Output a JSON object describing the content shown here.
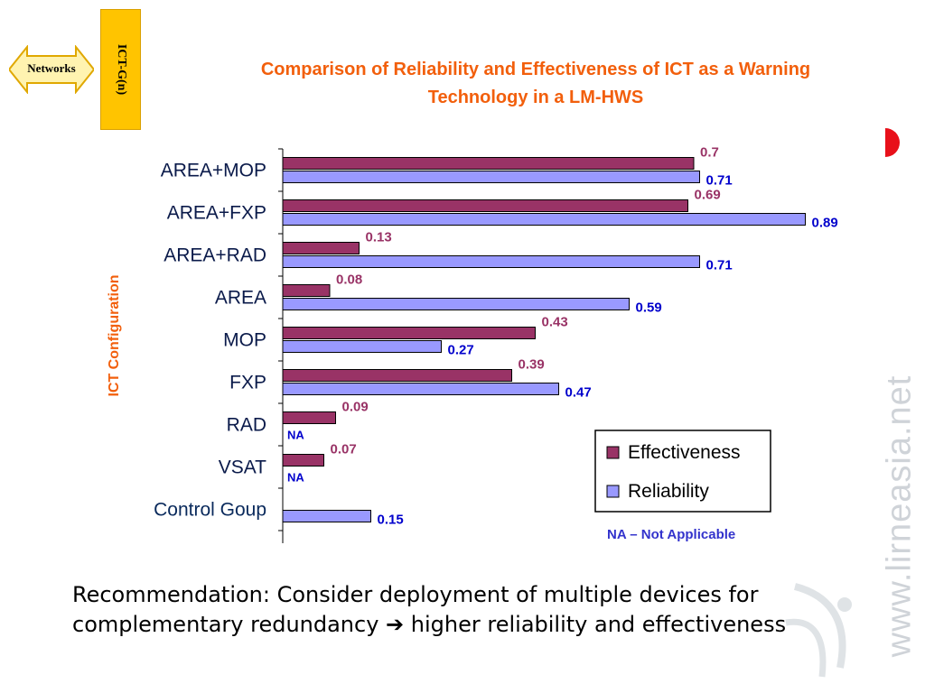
{
  "nav": {
    "label": "Networks",
    "tab_label": "ICT-G(n)"
  },
  "watermark": "www.lirneasia.net",
  "recommendation": {
    "text_before": "Recommendation: Consider deployment of multiple devices for complementary redundancy ",
    "arrow": "➔",
    "text_after": " higher reliability and effectiveness"
  },
  "colors": {
    "effectiveness": "#993366",
    "reliability": "#9999ff",
    "title": "#f25f0c",
    "reliability_label": "#0000cc",
    "effectiveness_label": "#993366",
    "tab": "#ffc400"
  },
  "chart_data": {
    "type": "bar",
    "orientation": "horizontal",
    "title": "Comparison of Reliability and Effectiveness of ICT as a Warning Technology in a LM-HWS",
    "xlabel": "",
    "ylabel": "ICT Configuration",
    "xlim": [
      0,
      1
    ],
    "grid": false,
    "legend_position": "bottom-right",
    "categories": [
      "AREA+MOP",
      "AREA+FXP",
      "AREA+RAD",
      "AREA",
      "MOP",
      "FXP",
      "RAD",
      "VSAT",
      "Control Goup"
    ],
    "series": [
      {
        "name": "Effectiveness",
        "values": [
          0.7,
          0.69,
          0.13,
          0.08,
          0.43,
          0.39,
          0.09,
          0.07,
          null
        ],
        "labels": [
          "0.7",
          "0.69",
          "0.13",
          "0.08",
          "0.43",
          "0.39",
          "0.09",
          "0.07",
          ""
        ]
      },
      {
        "name": "Reliability",
        "values": [
          0.71,
          0.89,
          0.71,
          0.59,
          0.27,
          0.47,
          null,
          null,
          0.15
        ],
        "labels": [
          "0.71",
          "0.89",
          "0.71",
          "0.59",
          "0.27",
          "0.47",
          "NA",
          "NA",
          "0.15"
        ]
      }
    ],
    "note": "NA – Not Applicable"
  }
}
